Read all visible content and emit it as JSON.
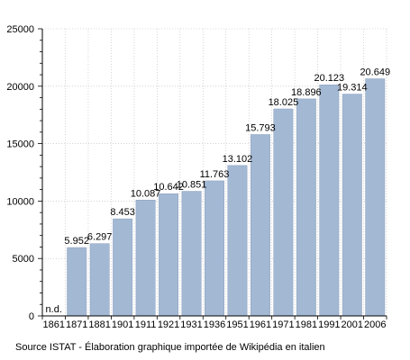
{
  "chart_data": {
    "type": "bar",
    "categories": [
      "1861",
      "1871",
      "1881",
      "1901",
      "1911",
      "1921",
      "1931",
      "1936",
      "1951",
      "1961",
      "1971",
      "1981",
      "1991",
      "2001",
      "2006"
    ],
    "values": [
      null,
      5952,
      6297,
      8453,
      10087,
      10642,
      10851,
      11763,
      13102,
      15793,
      18025,
      18896,
      20123,
      19314,
      20649
    ],
    "data_labels": [
      "n.d.",
      "5.952",
      "6.297",
      "8.453",
      "10.087",
      "10.642",
      "10.851",
      "11.763",
      "13.102",
      "15.793",
      "18.025",
      "18.896",
      "20.123",
      "19.314",
      "20.649"
    ],
    "yticks": [
      0,
      5000,
      10000,
      15000,
      20000,
      25000
    ],
    "ylim": [
      0,
      25000
    ],
    "title": "",
    "xlabel": "",
    "ylabel": "",
    "grid": true,
    "bar_color": "#a3b8d3",
    "bar_edge_color": "#8aa0bd",
    "grid_color": "#bbbbbb",
    "source": "Source ISTAT - Élaboration graphique importée de Wikipédia en italien"
  }
}
